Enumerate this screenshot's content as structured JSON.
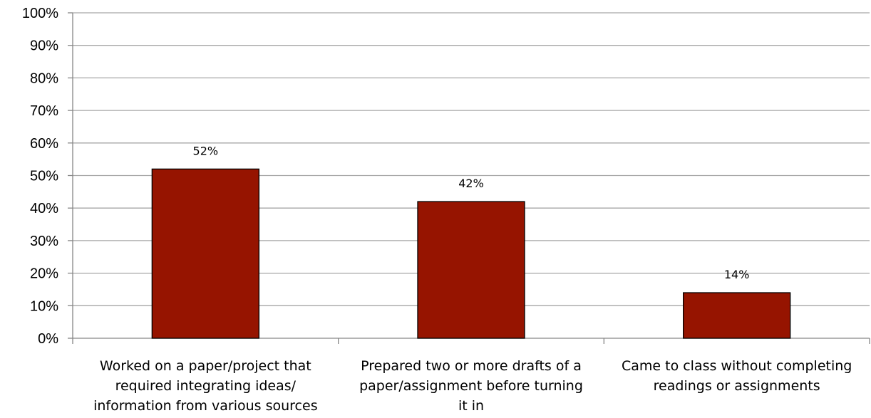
{
  "chart_data": {
    "type": "bar",
    "title": "",
    "xlabel": "",
    "ylabel": "",
    "categories": [
      "Worked on a paper/project that required integrating ideas/ information from various sources",
      "Prepared two or more drafts of a paper/assignment before turning it in",
      "Came to class without completing readings or assignments"
    ],
    "category_label_lines": [
      [
        "Worked on a paper/project that",
        "required integrating ideas/",
        "information from various sources"
      ],
      [
        "Prepared two or more drafts of a",
        "paper/assignment before turning",
        "it in"
      ],
      [
        "Came to class without completing",
        "readings or assignments"
      ]
    ],
    "series": [
      {
        "values": [
          52,
          42,
          14
        ]
      }
    ],
    "data_labels": [
      "52%",
      "42%",
      "14%"
    ],
    "ylim": [
      0,
      100
    ],
    "y_ticks": [
      "0%",
      "10%",
      "20%",
      "30%",
      "40%",
      "50%",
      "60%",
      "70%",
      "80%",
      "90%",
      "100%"
    ],
    "grid": true,
    "legend": "none",
    "colors": {
      "bar": "#961400",
      "bar_stroke": "#000000",
      "grid": "#a6a6a6",
      "axis": "#868686"
    }
  }
}
